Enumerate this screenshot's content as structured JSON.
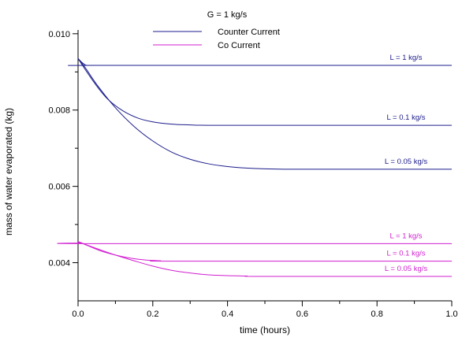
{
  "chart_data": {
    "type": "line",
    "title": "G = 1 kg/s",
    "xlabel": "time (hours)",
    "ylabel": "mass of water evaporated (kg)",
    "xlim": [
      0,
      1
    ],
    "ylim": [
      0.003,
      0.0101
    ],
    "xticks": [
      0,
      0.2,
      0.4,
      0.6,
      0.8,
      1.0
    ],
    "xtick_labels": [
      "0.0",
      "0.2",
      "0.4",
      "0.6",
      "0.8",
      "1.0"
    ],
    "yticks": [
      0.004,
      0.006,
      0.008,
      0.01
    ],
    "ytick_labels": [
      "0.004",
      "0.006",
      "0.008",
      "0.010"
    ],
    "grid": false,
    "legend": {
      "placement": "top-center",
      "entries": [
        {
          "label": "Counter Current",
          "color": "#1c1c8c"
        },
        {
          "label": "Co Current",
          "color": "#d11fd1"
        }
      ]
    },
    "series": [
      {
        "name": "L = 1 kg/s",
        "group": "Counter Current",
        "color": "#1c1c8c",
        "x": [
          0,
          0.01,
          0.02,
          0.03,
          0.05,
          1.0
        ],
        "y": [
          0.00935,
          0.00925,
          0.00918,
          0.00917,
          0.00917,
          0.00917
        ]
      },
      {
        "name": "L = 0.1 kg/s",
        "group": "Counter Current",
        "color": "#1c1c8c",
        "x": [
          0,
          0.02,
          0.05,
          0.08,
          0.12,
          0.16,
          0.2,
          0.25,
          0.3,
          0.4,
          1.0
        ],
        "y": [
          0.00935,
          0.00905,
          0.00863,
          0.00828,
          0.00798,
          0.00779,
          0.00769,
          0.00763,
          0.00761,
          0.0076,
          0.0076
        ]
      },
      {
        "name": "L = 0.05 kg/s",
        "group": "Counter Current",
        "color": "#1c1c8c",
        "x": [
          0,
          0.02,
          0.05,
          0.1,
          0.15,
          0.2,
          0.25,
          0.3,
          0.35,
          0.4,
          0.45,
          0.5,
          0.55,
          0.6,
          1.0
        ],
        "y": [
          0.00935,
          0.0091,
          0.00867,
          0.00806,
          0.00757,
          0.00719,
          0.0069,
          0.00671,
          0.00659,
          0.00652,
          0.00648,
          0.00646,
          0.00645,
          0.00645,
          0.00645
        ]
      },
      {
        "name": "L = 1 kg/s",
        "group": "Co Current",
        "color": "#d11fd1",
        "x": [
          0,
          0.01,
          0.02,
          1.0
        ],
        "y": [
          0.00455,
          0.00452,
          0.0045,
          0.0045
        ]
      },
      {
        "name": "L = 0.1 kg/s",
        "group": "Co Current",
        "color": "#d11fd1",
        "x": [
          0,
          0.03,
          0.06,
          0.1,
          0.14,
          0.18,
          0.22,
          0.26,
          1.0
        ],
        "y": [
          0.00455,
          0.00443,
          0.00431,
          0.0042,
          0.00412,
          0.00407,
          0.00405,
          0.00404,
          0.00404
        ]
      },
      {
        "name": "L = 0.05 kg/s",
        "group": "Co Current",
        "color": "#d11fd1",
        "x": [
          0,
          0.05,
          0.1,
          0.15,
          0.2,
          0.25,
          0.3,
          0.35,
          0.4,
          0.45,
          0.5,
          1.0
        ],
        "y": [
          0.00455,
          0.00437,
          0.0042,
          0.00405,
          0.00391,
          0.0038,
          0.00373,
          0.00368,
          0.00366,
          0.00365,
          0.00364,
          0.00364
        ]
      }
    ],
    "annotations": [
      {
        "text": "L = 1 kg/s",
        "color": "#1c1c8c",
        "series": 0
      },
      {
        "text": "L = 0.1 kg/s",
        "color": "#1c1c8c",
        "series": 1
      },
      {
        "text": "L = 0.05 kg/s",
        "color": "#1c1c8c",
        "series": 2
      },
      {
        "text": "L = 1 kg/s",
        "color": "#d11fd1",
        "series": 3
      },
      {
        "text": "L = 0.1 kg/s",
        "color": "#d11fd1",
        "series": 4
      },
      {
        "text": "L = 0.05 kg/s",
        "color": "#d11fd1",
        "series": 5
      }
    ]
  }
}
